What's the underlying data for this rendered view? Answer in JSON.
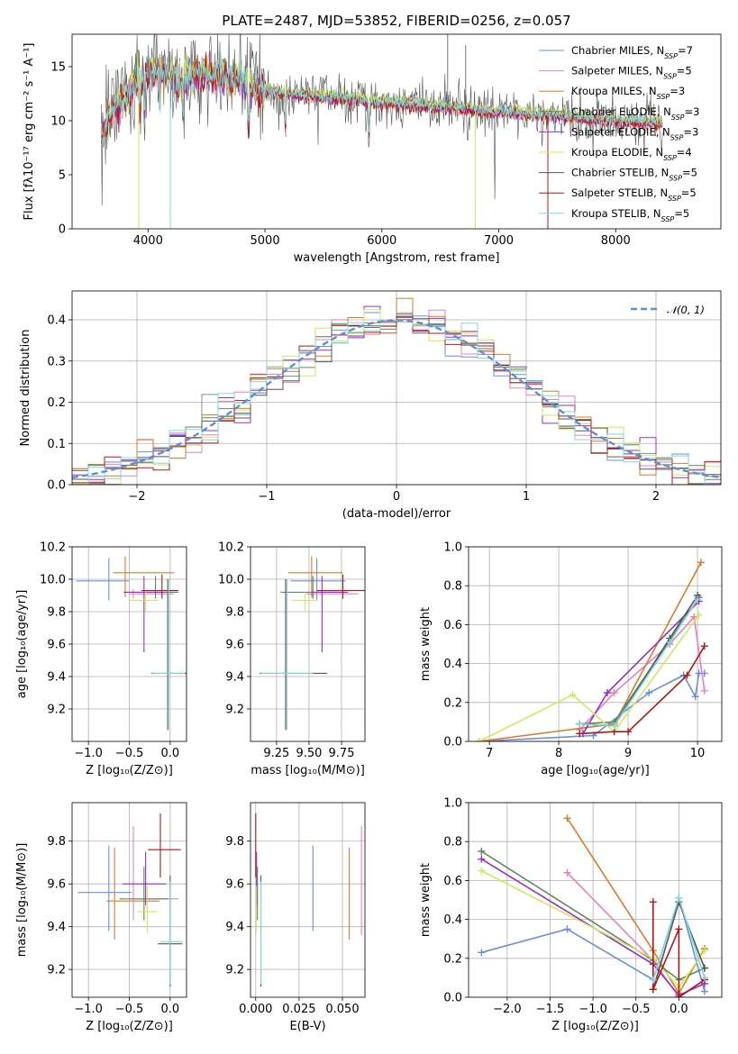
{
  "colors": [
    "#6a8fdb",
    "#e97fc2",
    "#d97b2b",
    "#5a8a5e",
    "#9b30c0",
    "#cfe860",
    "#555555",
    "#b01818",
    "#80d6d8"
  ],
  "chart_data": [
    {
      "id": "spectrum",
      "type": "line",
      "title": "PLATE=2487, MJD=53852, FIBERID=0256, z=0.057",
      "xlabel": "wavelength [Angstrom, rest frame]",
      "ylabel": "Flux [fλ10⁻¹⁷ erg cm⁻² s⁻¹ A⁻¹]",
      "xlim": [
        3350,
        8900
      ],
      "ylim": [
        0,
        18
      ],
      "xticks": [
        4000,
        5000,
        6000,
        7000,
        8000
      ],
      "yticks": [
        0,
        5,
        10,
        15
      ],
      "grid": false,
      "legend_position": "top-right",
      "legend": [
        "Chabrier MILES, N_SSP=7",
        "Salpeter MILES, N_SSP=5",
        "Kroupa MILES, N_SSP=3",
        "Chabrier ELODIE, N_SSP=3",
        "Salpeter ELODIE, N_SSP=3",
        "Kroupa ELODIE, N_SSP=4",
        "Chabrier STELIB, N_SSP=5",
        "Salpeter STELIB, N_SSP=5",
        "Kroupa STELIB, N_SSP=5"
      ],
      "continuum": [
        [
          3600,
          8.6
        ],
        [
          3700,
          11.0
        ],
        [
          3800,
          11.8
        ],
        [
          3900,
          13.6
        ],
        [
          4000,
          14.6
        ],
        [
          4100,
          14.4
        ],
        [
          4200,
          14.0
        ],
        [
          4300,
          13.6
        ],
        [
          4400,
          14.2
        ],
        [
          4500,
          14.4
        ],
        [
          4600,
          14.2
        ],
        [
          4700,
          14.0
        ],
        [
          4800,
          13.7
        ],
        [
          4900,
          13.2
        ],
        [
          5000,
          12.8
        ],
        [
          5200,
          12.5
        ],
        [
          5500,
          12.2
        ],
        [
          6000,
          11.7
        ],
        [
          6500,
          11.3
        ],
        [
          7000,
          10.8
        ],
        [
          7500,
          10.4
        ],
        [
          8000,
          10.0
        ],
        [
          8400,
          9.7
        ]
      ]
    },
    {
      "id": "residuals",
      "type": "histogram",
      "xlabel": "(data-model)/error",
      "ylabel": "Normed distribution",
      "xlim": [
        -2.5,
        2.5
      ],
      "ylim": [
        0,
        0.47
      ],
      "xticks": [
        -2,
        -1,
        0,
        1,
        2
      ],
      "yticks": [
        0.0,
        0.1,
        0.2,
        0.3,
        0.4
      ],
      "grid": true,
      "legend": [
        "𝒩(0, 1)"
      ],
      "legend_position": "top-right"
    },
    {
      "id": "age-vs-Z",
      "type": "scatter",
      "xlabel": "Z [log₁₀(Z/Z⊙)]",
      "ylabel": "age  [log₁₀(age/yr)]",
      "xlim": [
        -1.2,
        0.2
      ],
      "ylim": [
        9.0,
        10.2
      ],
      "xticks": [
        -1.0,
        -0.5,
        0.0
      ],
      "yticks": [
        9.2,
        9.4,
        9.6,
        9.8,
        10.0,
        10.2
      ],
      "grid": true,
      "points": [
        {
          "x": -0.75,
          "y": 9.99,
          "xerr": [
            0.4,
            0.25
          ],
          "yerr": [
            0.12,
            0.14
          ]
        },
        {
          "x": -0.45,
          "y": 9.91,
          "xerr": [
            0.05,
            0.5
          ],
          "yerr": [
            0.03,
            0.03
          ]
        },
        {
          "x": -0.55,
          "y": 10.04,
          "xerr": [
            0.15,
            0.6
          ],
          "yerr": [
            0.15,
            0.1
          ]
        },
        {
          "x": -0.18,
          "y": 9.92,
          "xerr": [
            0.3,
            0.28
          ],
          "yerr": [
            0.04,
            0.1
          ]
        },
        {
          "x": -0.32,
          "y": 9.92,
          "xerr": [
            0.25,
            0.25
          ],
          "yerr": [
            0.37,
            0.1
          ]
        },
        {
          "x": -0.3,
          "y": 9.87,
          "xerr": [
            0.2,
            0.15
          ],
          "yerr": [
            0.07,
            0.05
          ]
        },
        {
          "x": -0.03,
          "y": 9.42,
          "xerr": [
            0.2,
            0.25
          ],
          "yerr": [
            0.35,
            0.58
          ]
        },
        {
          "x": -0.1,
          "y": 9.93,
          "xerr": [
            0.25,
            0.2
          ],
          "yerr": [
            0.05,
            0.1
          ]
        },
        {
          "x": -0.02,
          "y": 9.42,
          "xerr": [
            0.2,
            0.2
          ],
          "yerr": [
            0.35,
            0.58
          ]
        }
      ]
    },
    {
      "id": "age-vs-mass",
      "type": "scatter",
      "xlabel": "mass [log₁₀(M/M⊙)]",
      "xlim": [
        9.05,
        9.93
      ],
      "ylim": [
        9.0,
        10.2
      ],
      "xticks": [
        9.25,
        9.5,
        9.75
      ],
      "yticks": [
        9.2,
        9.4,
        9.6,
        9.8,
        10.0,
        10.2
      ],
      "grid": true,
      "points": [
        {
          "x": 9.56,
          "y": 9.99,
          "xerr": [
            0.2,
            0.22
          ],
          "yerr": [
            0.12,
            0.14
          ]
        },
        {
          "x": 9.53,
          "y": 9.91,
          "xerr": [
            0.05,
            0.35
          ],
          "yerr": [
            0.03,
            0.03
          ]
        },
        {
          "x": 9.52,
          "y": 10.04,
          "xerr": [
            0.18,
            0.24
          ],
          "yerr": [
            0.15,
            0.1
          ]
        },
        {
          "x": 9.53,
          "y": 9.92,
          "xerr": [
            0.25,
            0.2
          ],
          "yerr": [
            0.04,
            0.1
          ]
        },
        {
          "x": 9.6,
          "y": 9.92,
          "xerr": [
            0.08,
            0.2
          ],
          "yerr": [
            0.37,
            0.1
          ]
        },
        {
          "x": 9.47,
          "y": 9.87,
          "xerr": [
            0.1,
            0.08
          ],
          "yerr": [
            0.07,
            0.05
          ]
        },
        {
          "x": 9.32,
          "y": 9.42,
          "xerr": [
            0.2,
            0.32
          ],
          "yerr": [
            0.35,
            0.58
          ]
        },
        {
          "x": 9.76,
          "y": 9.93,
          "xerr": [
            0.2,
            0.22
          ],
          "yerr": [
            0.05,
            0.1
          ]
        },
        {
          "x": 9.33,
          "y": 9.42,
          "xerr": [
            0.2,
            0.2
          ],
          "yerr": [
            0.35,
            0.58
          ]
        }
      ]
    },
    {
      "id": "weight-vs-age",
      "type": "line",
      "xlabel": "age  [log₁₀(age/yr)]",
      "ylabel": "mass weight",
      "xlim": [
        6.7,
        10.35
      ],
      "ylim": [
        0,
        1
      ],
      "xticks": [
        7,
        8,
        9,
        10
      ],
      "yticks": [
        0.0,
        0.2,
        0.4,
        0.6,
        0.8,
        1.0
      ],
      "grid": true,
      "series": [
        {
          "points": [
            [
              6.85,
              0.0
            ],
            [
              8.5,
              0.03
            ],
            [
              9.3,
              0.25
            ],
            [
              9.8,
              0.34
            ],
            [
              9.97,
              0.23
            ],
            [
              10.02,
              0.35
            ],
            [
              10.1,
              0.35
            ]
          ]
        },
        {
          "points": [
            [
              8.3,
              0.06
            ],
            [
              8.8,
              0.25
            ],
            [
              9.6,
              0.5
            ],
            [
              9.95,
              0.64
            ],
            [
              10.1,
              0.26
            ]
          ]
        },
        {
          "points": [
            [
              6.85,
              0.0
            ],
            [
              8.8,
              0.09
            ],
            [
              10.05,
              0.92
            ]
          ]
        },
        {
          "points": [
            [
              8.3,
              0.09
            ],
            [
              8.8,
              0.1
            ],
            [
              10.02,
              0.74
            ]
          ]
        },
        {
          "points": [
            [
              8.35,
              0.04
            ],
            [
              8.7,
              0.25
            ],
            [
              10.02,
              0.72
            ]
          ]
        },
        {
          "points": [
            [
              6.85,
              0.0
            ],
            [
              8.2,
              0.24
            ],
            [
              8.8,
              0.05
            ],
            [
              10.02,
              0.65
            ]
          ]
        },
        {
          "points": [
            [
              8.3,
              0.09
            ],
            [
              8.8,
              0.08
            ],
            [
              9.6,
              0.53
            ],
            [
              10.0,
              0.75
            ]
          ]
        },
        {
          "points": [
            [
              8.3,
              0.04
            ],
            [
              8.8,
              0.05
            ],
            [
              9.0,
              0.05
            ],
            [
              9.85,
              0.34
            ],
            [
              10.1,
              0.49
            ]
          ]
        },
        {
          "points": [
            [
              8.3,
              0.09
            ],
            [
              8.8,
              0.08
            ],
            [
              9.6,
              0.51
            ],
            [
              10.0,
              0.73
            ]
          ]
        }
      ]
    },
    {
      "id": "mass-vs-Z",
      "type": "scatter",
      "xlabel": "Z [log₁₀(Z/Z⊙)]",
      "ylabel": "mass [log₁₀(M/M⊙)]",
      "xlim": [
        -1.2,
        0.2
      ],
      "ylim": [
        9.07,
        9.98
      ],
      "xticks": [
        -1.0,
        -0.5,
        0.0
      ],
      "yticks": [
        9.2,
        9.4,
        9.6,
        9.8
      ],
      "grid": true,
      "points": [
        {
          "x": -0.75,
          "y": 9.56,
          "xerr": [
            0.38,
            0.28
          ],
          "yerr": [
            0.18,
            0.22
          ]
        },
        {
          "x": -0.45,
          "y": 9.53,
          "xerr": [
            0.05,
            0.55
          ],
          "yerr": [
            0.1,
            0.34
          ]
        },
        {
          "x": -0.68,
          "y": 9.52,
          "xerr": [
            0.1,
            0.55
          ],
          "yerr": [
            0.18,
            0.25
          ]
        },
        {
          "x": -0.32,
          "y": 9.53,
          "xerr": [
            0.3,
            0.3
          ],
          "yerr": [
            0.1,
            0.15
          ]
        },
        {
          "x": -0.3,
          "y": 9.6,
          "xerr": [
            0.28,
            0.25
          ],
          "yerr": [
            0.1,
            0.15
          ]
        },
        {
          "x": -0.28,
          "y": 9.47,
          "xerr": [
            0.12,
            0.12
          ],
          "yerr": [
            0.1,
            0.12
          ]
        },
        {
          "x": 0.0,
          "y": 9.32,
          "xerr": [
            0.15,
            0.15
          ],
          "yerr": [
            0.2,
            0.32
          ]
        },
        {
          "x": -0.12,
          "y": 9.76,
          "xerr": [
            0.15,
            0.25
          ],
          "yerr": [
            0.13,
            0.17
          ]
        },
        {
          "x": 0.0,
          "y": 9.33,
          "xerr": [
            0.12,
            0.15
          ],
          "yerr": [
            0.2,
            0.28
          ]
        }
      ]
    },
    {
      "id": "mass-vs-ebv",
      "type": "scatter",
      "xlabel": "E(B-V)",
      "xlim": [
        -0.003,
        0.063
      ],
      "ylim": [
        9.07,
        9.98
      ],
      "xticks": [
        0.0,
        0.025,
        0.05
      ],
      "yticks": [
        9.2,
        9.4,
        9.6,
        9.8
      ],
      "grid": true,
      "points": [
        {
          "x": 0.033,
          "y": 9.56,
          "xerr": [
            0,
            0
          ],
          "yerr": [
            0.18,
            0.22
          ]
        },
        {
          "x": 0.061,
          "y": 9.53,
          "xerr": [
            0,
            0
          ],
          "yerr": [
            0.17,
            0.34
          ]
        },
        {
          "x": 0.054,
          "y": 9.52,
          "xerr": [
            0,
            0
          ],
          "yerr": [
            0.18,
            0.25
          ]
        },
        {
          "x": 0.001,
          "y": 9.53,
          "xerr": [
            0,
            0
          ],
          "yerr": [
            0.1,
            0.15
          ]
        },
        {
          "x": 0.0005,
          "y": 9.6,
          "xerr": [
            0,
            0
          ],
          "yerr": [
            0.1,
            0.15
          ]
        },
        {
          "x": 0.0003,
          "y": 9.47,
          "xerr": [
            0,
            0
          ],
          "yerr": [
            0.1,
            0.12
          ]
        },
        {
          "x": 0.003,
          "y": 9.32,
          "xerr": [
            0,
            0
          ],
          "yerr": [
            0.2,
            0.32
          ]
        },
        {
          "x": 0.0,
          "y": 9.76,
          "xerr": [
            0,
            0
          ],
          "yerr": [
            0.13,
            0.17
          ]
        },
        {
          "x": 0.003,
          "y": 9.33,
          "xerr": [
            0,
            0
          ],
          "yerr": [
            0.2,
            0.28
          ]
        }
      ]
    },
    {
      "id": "weight-vs-Z",
      "type": "line",
      "xlabel": "Z [log₁₀(Z/Z⊙)]",
      "ylabel": "mass weight",
      "xlim": [
        -2.45,
        0.5
      ],
      "ylim": [
        0,
        1
      ],
      "xticks": [
        -2.0,
        -1.5,
        -1.0,
        -0.5,
        0.0
      ],
      "yticks": [
        0.0,
        0.2,
        0.4,
        0.6,
        0.8,
        1.0
      ],
      "grid": true,
      "series": [
        {
          "points": [
            [
              -2.3,
              0.23
            ],
            [
              -1.3,
              0.35
            ],
            [
              -0.3,
              0.09
            ],
            [
              0.0,
              0.51
            ],
            [
              0.3,
              0.03
            ]
          ]
        },
        {
          "points": [
            [
              -1.3,
              0.64
            ],
            [
              -0.3,
              0.19
            ],
            [
              0.0,
              0.0
            ],
            [
              0.3,
              0.09
            ]
          ]
        },
        {
          "points": [
            [
              -1.3,
              0.92
            ],
            [
              -0.3,
              0.24
            ],
            [
              0.0,
              0.02
            ],
            [
              0.3,
              0.25
            ]
          ]
        },
        {
          "points": [
            [
              -2.3,
              0.75
            ],
            [
              -0.3,
              0.19
            ],
            [
              0.0,
              0.09
            ],
            [
              0.3,
              0.15
            ]
          ]
        },
        {
          "points": [
            [
              -2.3,
              0.71
            ],
            [
              -0.3,
              0.17
            ],
            [
              0.0,
              0.01
            ],
            [
              0.3,
              0.07
            ]
          ]
        },
        {
          "points": [
            [
              -2.3,
              0.65
            ],
            [
              -0.3,
              0.2
            ],
            [
              0.0,
              0.05
            ],
            [
              0.3,
              0.24
            ]
          ]
        },
        {
          "points": [
            [
              -0.3,
              0.04
            ],
            [
              0.0,
              0.49
            ],
            [
              0.3,
              0.15
            ]
          ]
        },
        {
          "points": [
            [
              -0.3,
              0.49
            ],
            [
              -0.3,
              0.04
            ],
            [
              0.0,
              0.35
            ],
            [
              0.0,
              0.0
            ],
            [
              0.3,
              0.09
            ]
          ]
        },
        {
          "points": [
            [
              -0.3,
              0.09
            ],
            [
              0.0,
              0.51
            ],
            [
              0.3,
              0.1
            ]
          ]
        }
      ]
    }
  ]
}
